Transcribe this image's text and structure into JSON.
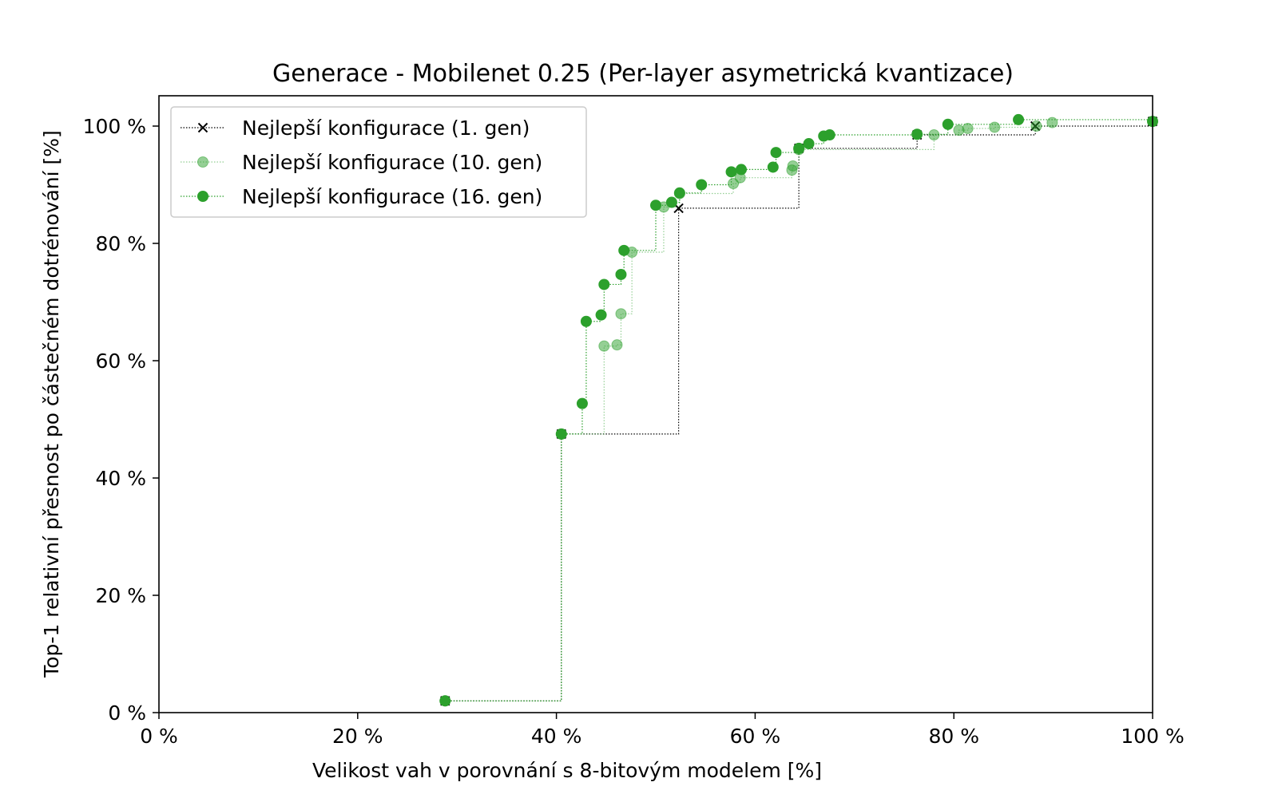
{
  "chart_data": {
    "type": "line",
    "title": "Generace - Mobilenet 0.25 (Per-layer asymetrická kvantizace)",
    "xlabel": "Velikost vah v porovnání s 8-bitovým modelem [%]",
    "ylabel": "Top-1 relativní přesnost po částečném dotrénování [%]",
    "xlim": [
      0,
      100
    ],
    "ylim": [
      0,
      100
    ],
    "x_ticks": [
      "0 %",
      "20 %",
      "40 %",
      "60 %",
      "80 %",
      "100 %"
    ],
    "y_ticks": [
      "0 %",
      "20 %",
      "40 %",
      "60 %",
      "80 %",
      "100 %"
    ],
    "grid": false,
    "legend_position": "top-left",
    "step": true,
    "series": [
      {
        "name": "Nejlepší konfigurace (1. gen)",
        "marker": "x",
        "color": "#000000",
        "opacity": 1,
        "x": [
          28.8,
          40.5,
          52.3,
          64.4,
          76.3,
          88.2,
          100.0
        ],
        "y": [
          2.0,
          47.5,
          86.0,
          96.2,
          98.5,
          100.0,
          100.8
        ]
      },
      {
        "name": "Nejlepší konfigurace (10. gen)",
        "marker": "o",
        "color": "#2ca02c",
        "opacity": 0.5,
        "x": [
          28.8,
          40.5,
          44.8,
          46.1,
          46.5,
          47.6,
          50.8,
          52.4,
          57.8,
          58.5,
          63.7,
          63.8,
          64.4,
          78.0,
          80.5,
          81.4,
          84.1,
          88.3,
          89.9
        ],
        "y": [
          2.0,
          47.5,
          62.5,
          62.7,
          68.0,
          78.5,
          86.2,
          88.5,
          90.2,
          91.2,
          92.5,
          93.2,
          96.0,
          98.5,
          99.3,
          99.6,
          99.8,
          100.0,
          100.6
        ]
      },
      {
        "name": "Nejlepší konfigurace (16. gen)",
        "marker": "o",
        "color": "#2ca02c",
        "opacity": 1,
        "x": [
          28.8,
          40.5,
          42.6,
          43.0,
          44.5,
          44.8,
          46.5,
          46.8,
          50.0,
          51.6,
          52.4,
          54.6,
          57.6,
          58.6,
          61.8,
          62.1,
          64.4,
          65.4,
          66.9,
          67.5,
          76.3,
          79.4,
          86.5,
          100.0
        ],
        "y": [
          2.0,
          47.5,
          52.7,
          66.7,
          67.8,
          73.0,
          74.7,
          78.8,
          86.5,
          87.0,
          88.6,
          90.0,
          92.2,
          92.6,
          93.0,
          95.5,
          96.2,
          97.0,
          98.3,
          98.5,
          98.6,
          100.3,
          101.1,
          100.8
        ]
      }
    ]
  }
}
